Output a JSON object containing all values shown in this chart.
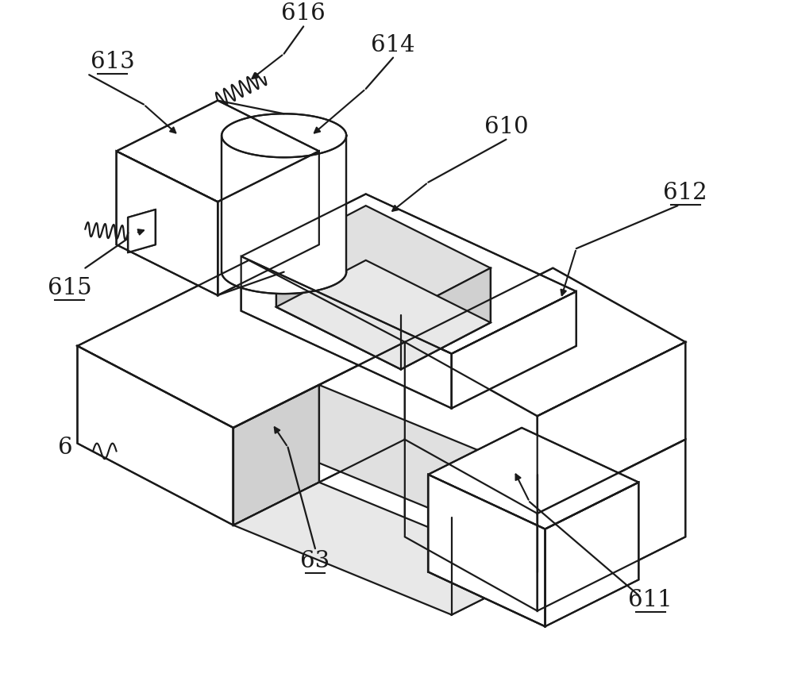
{
  "bg_color": "#ffffff",
  "line_color": "#1a1a1a",
  "lw": 1.6,
  "fig_width": 10.0,
  "fig_height": 8.58,
  "label_fontsize": 21
}
